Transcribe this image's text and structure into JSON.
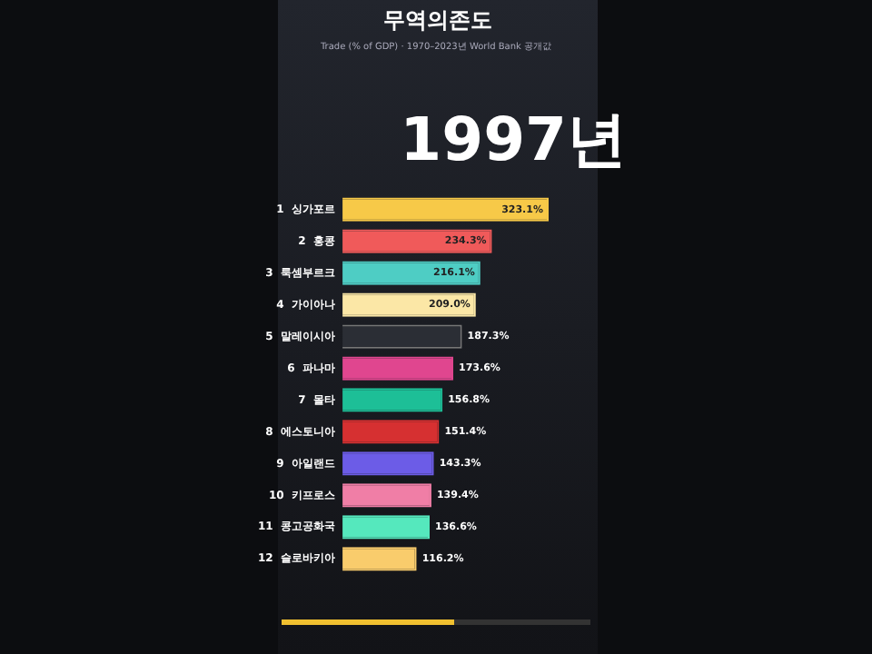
{
  "chart_data": {
    "type": "bar",
    "orientation": "horizontal",
    "title": "무역의존도",
    "subtitle": "Trade (% of GDP) · 1970–2023년 World Bank 공개값",
    "annotations": [
      "1997년"
    ],
    "categories": [
      "1  싱가포르",
      "2  홍콩",
      "3  룩셈부르크",
      "4  가이아나",
      "5  말레이시아",
      "6  파나마",
      "7  몰타",
      "8  에스토니아",
      "9  아일랜드",
      "10  키프로스",
      "11  콩고공화국",
      "12  슬로바키아"
    ],
    "values": [
      323.1,
      234.3,
      216.1,
      209.0,
      187.3,
      173.6,
      156.8,
      151.4,
      143.3,
      139.4,
      136.6,
      116.2
    ],
    "colors": [
      "#f7c948",
      "#f05a5a",
      "#4ecdc4",
      "#fbe7a6",
      "#2b2e35",
      "#e0468f",
      "#1dbf97",
      "#d63031",
      "#6c5ce7",
      "#f07ea6",
      "#55e8bd",
      "#f9cc6c"
    ],
    "value_labels": [
      "323.1%",
      "234.3%",
      "216.1%",
      "209.0%",
      "187.3%",
      "173.6%",
      "156.8%",
      "151.4%",
      "143.3%",
      "139.4%",
      "136.6%",
      "116.2%"
    ],
    "legend": false,
    "tick_labels": "y"
  }
}
